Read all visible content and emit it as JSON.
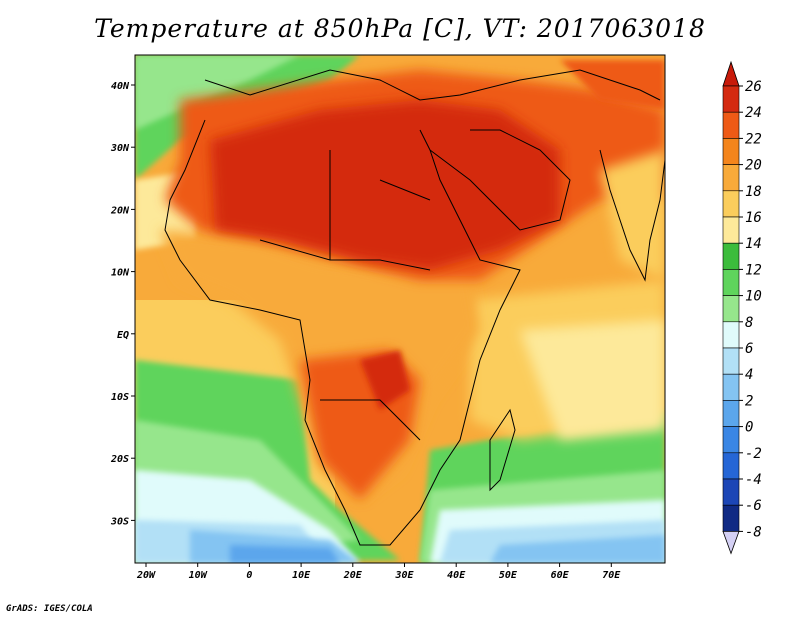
{
  "title": "Temperature at 850hPa [C], VT: 2017063018",
  "credit": "GrADS: IGES/COLA",
  "lon_ticks": [
    "20W",
    "10W",
    "0",
    "10E",
    "20E",
    "30E",
    "40E",
    "50E",
    "60E",
    "70E"
  ],
  "lat_ticks": [
    "40N",
    "30N",
    "20N",
    "10N",
    "EQ",
    "10S",
    "20S",
    "30S"
  ],
  "colorbar": {
    "labels": [
      "26",
      "24",
      "22",
      "20",
      "18",
      "16",
      "14",
      "12",
      "10",
      "8",
      "6",
      "4",
      "2",
      "0",
      "-2",
      "-4",
      "-6",
      "-8"
    ],
    "colors": [
      "#d42a10",
      "#ee5a16",
      "#f4851c",
      "#f8aa3a",
      "#fbcd5c",
      "#fde99a",
      "#3cbc3c",
      "#5fd45c",
      "#96e68c",
      "#e0fbfb",
      "#b2e0f6",
      "#84c4f2",
      "#5ba6ec",
      "#3a86e4",
      "#2566d6",
      "#1c46b6",
      "#102a84"
    ],
    "top_arrow_color": "#c81a0a",
    "bottom_arrow_color": "#d4d0f4"
  },
  "map_colors": {
    "ocean_cool": "#e4fafa",
    "ocean_mid": "#96e68c",
    "ocean_deep": "#5ba6ec",
    "land_hot": "#d42a10",
    "land_warm": "#ee5a16",
    "land_mild": "#f8aa3a",
    "land_light": "#fbcd5c"
  }
}
